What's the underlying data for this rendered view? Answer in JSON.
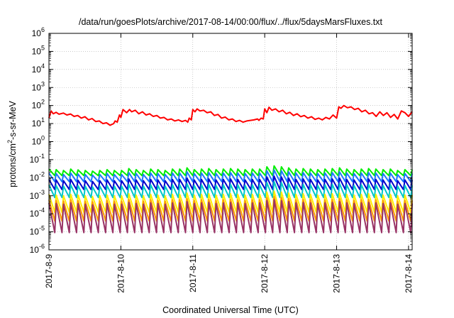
{
  "chart_data": {
    "type": "line",
    "title": "/data/run/goesPlots/archive/2017-08-14/00:00/flux/../flux/5daysMarsFluxes.txt",
    "xlabel": "Coordinated Universal Time (UTC)",
    "ylabel": "protons/cm²-s-sr-MeV",
    "ylabel_parts": [
      "protons/cm",
      "2",
      "-s-sr-MeV"
    ],
    "xlim": [
      0,
      5.05
    ],
    "ylim": [
      -6,
      6
    ],
    "y_scale": "log",
    "grid": true,
    "legend": "none",
    "x_tick_positions": [
      0,
      1,
      2,
      3,
      4,
      5
    ],
    "x_tick_labels": [
      "2017-8-9",
      "2017-8-10",
      "2017-8-11",
      "2017-8-12",
      "2017-8-13",
      "2017-8-14"
    ],
    "y_ticks": [
      {
        "exp": -6,
        "base": "10",
        "sup": "-6"
      },
      {
        "exp": -5,
        "base": "10",
        "sup": "-5"
      },
      {
        "exp": -4,
        "base": "10",
        "sup": "-4"
      },
      {
        "exp": -3,
        "base": "10",
        "sup": "-3"
      },
      {
        "exp": -2,
        "base": "10",
        "sup": "-2"
      },
      {
        "exp": -1,
        "base": "10",
        "sup": "-1"
      },
      {
        "exp": 0,
        "base": "10",
        "sup": "0"
      },
      {
        "exp": 1,
        "base": "10",
        "sup": "1"
      },
      {
        "exp": 2,
        "base": "10",
        "sup": "2"
      },
      {
        "exp": 3,
        "base": "10",
        "sup": "3"
      },
      {
        "exp": 4,
        "base": "10",
        "sup": "4"
      },
      {
        "exp": 5,
        "base": "10",
        "sup": "5"
      },
      {
        "exp": 6,
        "base": "10",
        "sup": "6"
      }
    ],
    "series": [
      {
        "color": "#ff0000",
        "x": [
          0,
          0.03,
          0.06,
          0.1,
          0.14,
          0.2,
          0.25,
          0.3,
          0.35,
          0.4,
          0.45,
          0.5,
          0.55,
          0.6,
          0.65,
          0.7,
          0.75,
          0.8,
          0.85,
          0.9,
          0.92,
          0.95,
          0.98,
          1.0,
          1.03,
          1.08,
          1.12,
          1.15,
          1.2,
          1.25,
          1.3,
          1.35,
          1.4,
          1.45,
          1.5,
          1.55,
          1.6,
          1.65,
          1.7,
          1.75,
          1.8,
          1.85,
          1.9,
          1.93,
          1.95,
          1.98,
          2.0,
          2.03,
          2.06,
          2.1,
          2.15,
          2.2,
          2.25,
          2.3,
          2.35,
          2.4,
          2.45,
          2.5,
          2.55,
          2.6,
          2.65,
          2.7,
          2.75,
          2.8,
          2.85,
          2.9,
          2.92,
          2.95,
          2.98,
          3.0,
          3.03,
          3.06,
          3.1,
          3.15,
          3.2,
          3.25,
          3.3,
          3.35,
          3.4,
          3.45,
          3.5,
          3.55,
          3.6,
          3.65,
          3.7,
          3.75,
          3.8,
          3.85,
          3.9,
          3.95,
          4.0,
          4.03,
          4.06,
          4.1,
          4.15,
          4.2,
          4.25,
          4.3,
          4.35,
          4.4,
          4.45,
          4.5,
          4.55,
          4.6,
          4.65,
          4.7,
          4.75,
          4.8,
          4.85,
          4.9,
          4.95,
          5.0,
          5.05
        ],
        "y": [
          20,
          50,
          35,
          42,
          33,
          38,
          30,
          34,
          25,
          28,
          20,
          24,
          16,
          19,
          13,
          14,
          10,
          11,
          8,
          10,
          14,
          12,
          30,
          22,
          60,
          40,
          60,
          45,
          55,
          35,
          45,
          30,
          35,
          25,
          28,
          20,
          22,
          16,
          18,
          14,
          16,
          13,
          15,
          12,
          20,
          16,
          60,
          45,
          65,
          50,
          55,
          40,
          45,
          28,
          32,
          20,
          23,
          16,
          18,
          13,
          15,
          12,
          14,
          15,
          16,
          18,
          15,
          20,
          18,
          65,
          40,
          80,
          55,
          65,
          45,
          55,
          35,
          42,
          28,
          35,
          24,
          28,
          20,
          24,
          17,
          20,
          16,
          22,
          18,
          30,
          20,
          85,
          70,
          100,
          75,
          85,
          60,
          70,
          45,
          55,
          35,
          40,
          25,
          45,
          28,
          40,
          22,
          32,
          18,
          50,
          40,
          25,
          45
        ]
      },
      {
        "color": "#00ee00",
        "valley": 0.013,
        "peaks": [
          0.03,
          0.028,
          0.025,
          0.03,
          0.027,
          0.025,
          0.023,
          0.025,
          0.028,
          0.025,
          0.025,
          0.032,
          0.028,
          0.025,
          0.03,
          0.028,
          0.025,
          0.03,
          0.03,
          0.035,
          0.028,
          0.03,
          0.032,
          0.028,
          0.03,
          0.032,
          0.03,
          0.028,
          0.03,
          0.03,
          0.04,
          0.045,
          0.04,
          0.035,
          0.03,
          0.032,
          0.03,
          0.028,
          0.03,
          0.032,
          0.035,
          0.03,
          0.028,
          0.03,
          0.032,
          0.03,
          0.028,
          0.03,
          0.025,
          0.028
        ]
      },
      {
        "color": "#1e78ff",
        "valley": 0.006,
        "peaks": [
          0.018,
          0.017,
          0.015,
          0.018,
          0.016,
          0.015,
          0.014,
          0.015,
          0.017,
          0.015,
          0.015,
          0.019,
          0.017,
          0.015,
          0.018,
          0.017,
          0.015,
          0.018,
          0.018,
          0.021,
          0.017,
          0.018,
          0.019,
          0.017,
          0.018,
          0.019,
          0.018,
          0.017,
          0.018,
          0.018,
          0.024,
          0.027,
          0.024,
          0.021,
          0.018,
          0.019,
          0.018,
          0.017,
          0.018,
          0.019,
          0.021,
          0.018,
          0.017,
          0.018,
          0.019,
          0.018,
          0.017,
          0.018,
          0.015,
          0.017
        ]
      },
      {
        "color": "#0000cc",
        "valley": 0.0022,
        "peaks": [
          0.008,
          0.0075,
          0.0068,
          0.008,
          0.0072,
          0.0068,
          0.0062,
          0.0068,
          0.0075,
          0.0068,
          0.0068,
          0.0085,
          0.0075,
          0.0068,
          0.008,
          0.0075,
          0.0068,
          0.008,
          0.008,
          0.0094,
          0.0075,
          0.008,
          0.0085,
          0.0075,
          0.008,
          0.0085,
          0.008,
          0.0075,
          0.008,
          0.008,
          0.011,
          0.012,
          0.011,
          0.0094,
          0.008,
          0.0085,
          0.008,
          0.0075,
          0.008,
          0.0085,
          0.0094,
          0.008,
          0.0075,
          0.008,
          0.0085,
          0.008,
          0.0075,
          0.008,
          0.0068,
          0.0075
        ]
      },
      {
        "color": "#00c8c8",
        "valley": 0.0008,
        "peaks": [
          0.004,
          0.0037,
          0.0034,
          0.004,
          0.0036,
          0.0034,
          0.0031,
          0.0034,
          0.0037,
          0.0034,
          0.0034,
          0.0042,
          0.0037,
          0.0034,
          0.004,
          0.0037,
          0.0034,
          0.004,
          0.004,
          0.0047,
          0.0037,
          0.004,
          0.0042,
          0.0037,
          0.004,
          0.0042,
          0.004,
          0.0037,
          0.004,
          0.004,
          0.0053,
          0.006,
          0.0053,
          0.0047,
          0.004,
          0.0042,
          0.004,
          0.0037,
          0.004,
          0.0042,
          0.0047,
          0.004,
          0.0037,
          0.004,
          0.0042,
          0.004,
          0.0037,
          0.004,
          0.0034,
          0.0037
        ]
      },
      {
        "color": "#ffee00",
        "valley": 0.00012,
        "peaks": [
          0.0012,
          0.0011,
          0.001,
          0.0012,
          0.0011,
          0.001,
          0.0009,
          0.001,
          0.0011,
          0.001,
          0.001,
          0.0013,
          0.0011,
          0.001,
          0.0012,
          0.0011,
          0.001,
          0.0012,
          0.0012,
          0.0014,
          0.0011,
          0.0012,
          0.0013,
          0.0011,
          0.0012,
          0.0013,
          0.0012,
          0.0011,
          0.0012,
          0.0012,
          0.0016,
          0.0018,
          0.0016,
          0.0014,
          0.0012,
          0.0013,
          0.0012,
          0.0011,
          0.0012,
          0.0013,
          0.0014,
          0.0012,
          0.0011,
          0.0012,
          0.0013,
          0.0012,
          0.0011,
          0.0012,
          0.001,
          0.0011
        ]
      },
      {
        "color": "#ff9900",
        "valley": 4e-05,
        "peaks": [
          0.0006,
          0.00055,
          0.0005,
          0.0006,
          0.00054,
          0.0005,
          0.00046,
          0.0005,
          0.00055,
          0.0005,
          0.0005,
          0.00062,
          0.00055,
          0.0005,
          0.0006,
          0.00055,
          0.0005,
          0.0006,
          0.0006,
          0.0007,
          0.00055,
          0.0006,
          0.00062,
          0.00055,
          0.0006,
          0.00062,
          0.0006,
          0.00055,
          0.0006,
          0.0006,
          0.0008,
          0.0009,
          0.0008,
          0.0007,
          0.0006,
          0.00062,
          0.0006,
          0.00055,
          0.0006,
          0.00062,
          0.0007,
          0.0006,
          0.00055,
          0.0006,
          0.00062,
          0.0006,
          0.00055,
          0.0006,
          0.0005,
          0.00055
        ]
      },
      {
        "color": "#993366",
        "valley": 9e-06,
        "peaks": [
          0.0004,
          0.00037,
          0.00034,
          0.0004,
          0.00036,
          0.00034,
          0.00031,
          0.00034,
          0.00037,
          0.00034,
          0.00034,
          0.00042,
          0.00037,
          0.00034,
          0.0004,
          0.00037,
          0.00034,
          0.0004,
          0.0004,
          0.00047,
          0.00037,
          0.0004,
          0.00042,
          0.00037,
          0.0004,
          0.00042,
          0.0004,
          0.00037,
          0.0004,
          0.0004,
          0.00053,
          0.0006,
          0.00053,
          0.00047,
          0.0004,
          0.00042,
          0.0004,
          0.00037,
          0.0004,
          0.00042,
          0.00047,
          0.0004,
          0.00037,
          0.0004,
          0.00042,
          0.0004,
          0.00037,
          0.0004,
          0.00034,
          0.00037
        ]
      }
    ]
  }
}
